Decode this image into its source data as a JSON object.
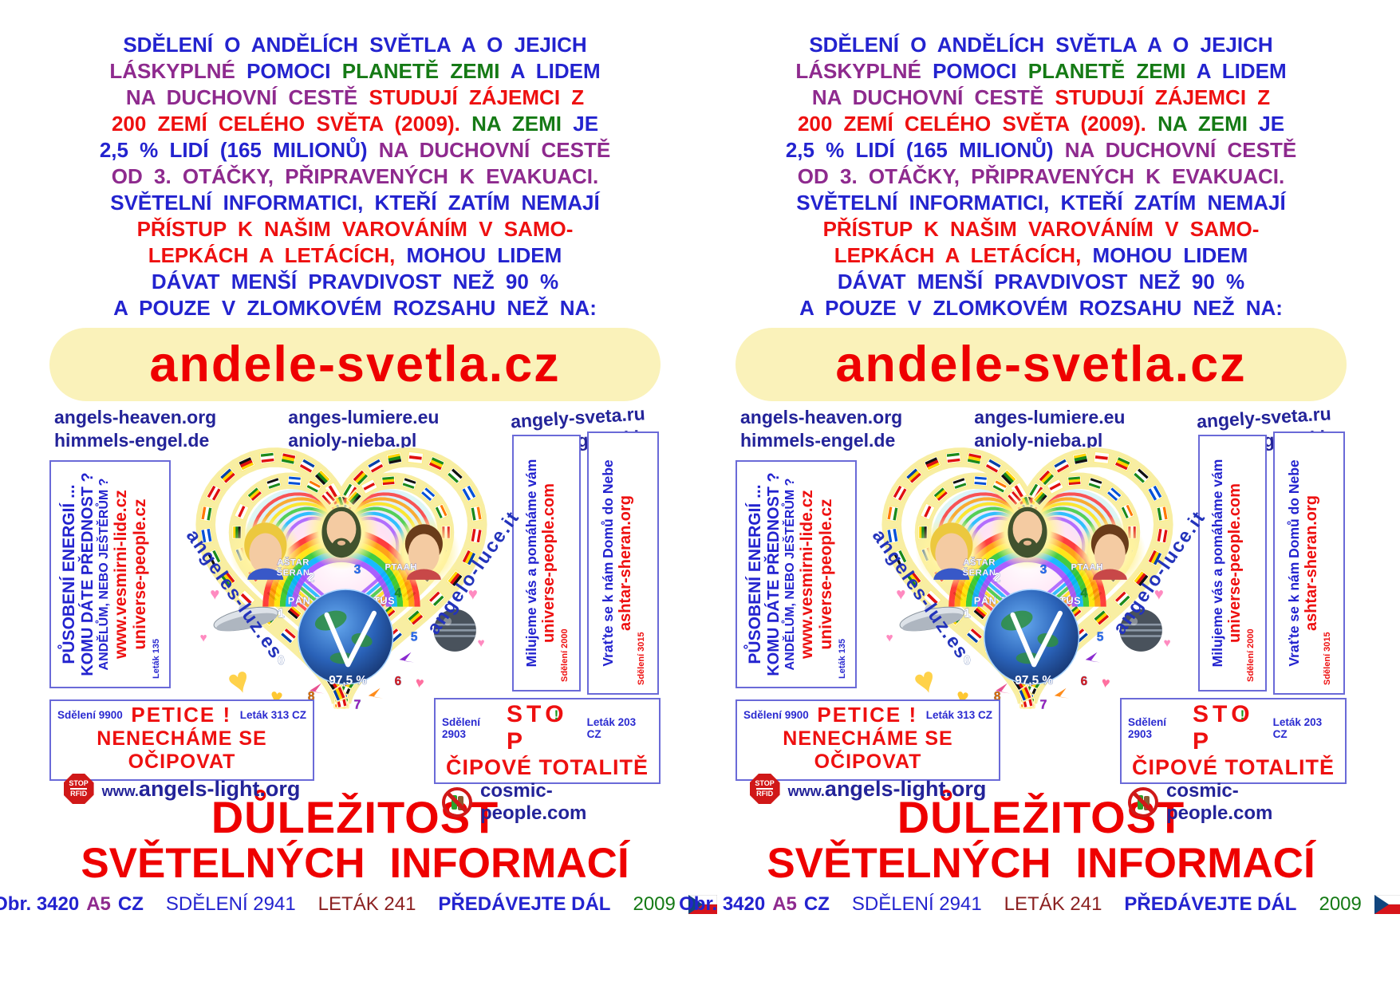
{
  "colors": {
    "blue": "#2323cf",
    "purple": "#8e2a8e",
    "red": "#ee1010",
    "green": "#157a15",
    "navy": "#232399",
    "maroon": "#8b2121",
    "title_red": "#ee0000",
    "banner_bg": "#faf2ba",
    "box_border": "#6a6ad8"
  },
  "icons": {
    "heart_glyph": "♥",
    "stop_badge_top": "STOP",
    "stop_badge_bottom": "RFID"
  },
  "leaflet": {
    "intro_lines": [
      [
        {
          "t": "SDĚLENÍ O ANDĚLÍCH SVĚTLA A O JEJICH",
          "c": "blue"
        }
      ],
      [
        {
          "t": "LÁSKYPLNÉ",
          "c": "purple"
        },
        {
          "t": "POMOCI",
          "c": "blue"
        },
        {
          "t": "PLANETĚ ZEMI",
          "c": "green"
        },
        {
          "t": "A LIDEM",
          "c": "blue"
        }
      ],
      [
        {
          "t": "NA DUCHOVNÍ CESTĚ",
          "c": "purple"
        },
        {
          "t": "STUDUJÍ ZÁJEMCI Z",
          "c": "red"
        }
      ],
      [
        {
          "t": "200 ZEMÍ CELÉHO SVĚTA (2009).",
          "c": "red"
        },
        {
          "t": "NA ZEMI",
          "c": "green"
        },
        {
          "t": "JE",
          "c": "blue"
        }
      ],
      [
        {
          "t": "2,5 % LIDÍ (165 MILIONŮ)",
          "c": "blue"
        },
        {
          "t": "NA DUCHOVNÍ CESTĚ",
          "c": "purple"
        }
      ],
      [
        {
          "t": "OD 3. OTÁČKY, PŘIPRAVENÝCH K EVAKUACI.",
          "c": "purple"
        }
      ],
      [
        {
          "t": "SVĚTELNÍ INFORMATICI, KTEŘÍ ZATÍM NEMAJÍ",
          "c": "blue"
        }
      ],
      [
        {
          "t": "PŘÍSTUP K NAŠIM VAROVÁNÍM V SAMO-",
          "c": "red"
        }
      ],
      [
        {
          "t": "LEPKÁCH A LETÁCÍCH,",
          "c": "red"
        },
        {
          "t": "MOHOU LIDEM",
          "c": "blue"
        }
      ],
      [
        {
          "t": "DÁVAT MENŠÍ PRAVDIVOST NEŽ 90 %",
          "c": "blue"
        }
      ],
      [
        {
          "t": "A POUZE V ZLOMKOVÉM ROZSAHU NEŽ NA:",
          "c": "blue"
        }
      ]
    ],
    "main_domain": "andele-svetla.cz",
    "mirror_columns": [
      [
        "angels-heaven.org",
        "himmels-engel.de"
      ],
      [
        "anges-lumiere.eu",
        "anioly-nieba.pl"
      ],
      [
        "angely-sveta.ru",
        "feny-angyalai.hu"
      ]
    ],
    "left_box": {
      "line1": "PŮSOBENÍ ENERGIÍ ...",
      "line2": "KOMU DÁTE PŘEDNOST ?",
      "line3": "ANDĚLŮM, NEBO JEŠTĚRŮM ?",
      "site1": "www.vesmirni-lide.cz",
      "site2": "universe-people.cz",
      "note": "Leták 135"
    },
    "right_box_love": {
      "message": "Milujeme vás a pomáháme vám",
      "site": "universe-people.com",
      "note": "Sdělení 2000"
    },
    "right_box_home": {
      "message": "Vraťte se k nám Domů do Nebe",
      "site": "ashtar-sheran.org",
      "note": "Sdělení 3015"
    },
    "heart": {
      "labels": {
        "ashtar_l1": "AŠTAR",
        "ashtar_l2": "ŠERAN",
        "jesus": "PÁN JEŽÍŠ KRISTUS",
        "ptaah": "PTAAH"
      },
      "percent": "97,5 %",
      "left_site": "angeles-luz.es",
      "right_site": "angelo-luce.it",
      "dial": [
        {
          "n": "0",
          "c": "#ffffff"
        },
        {
          "n": "1",
          "c": "#ffffff"
        },
        {
          "n": "2",
          "c": "#ffffff"
        },
        {
          "n": "3",
          "c": "#2a6df0"
        },
        {
          "n": "4",
          "c": "#1a9a1a"
        },
        {
          "n": "5",
          "c": "#2a6df0"
        },
        {
          "n": "6",
          "c": "#e02020"
        },
        {
          "n": "7",
          "c": "#a020c0"
        },
        {
          "n": "8",
          "c": "#e07000"
        }
      ],
      "flag_palette": [
        [
          "#e01010",
          "#ffffff",
          "#e01010"
        ],
        [
          "#0040a8",
          "#ffd400",
          "#e01010"
        ],
        [
          "#111111",
          "#e01010",
          "#ffd400"
        ],
        [
          "#1a8a1a",
          "#ffffff",
          "#e01010"
        ],
        [
          "#e01010",
          "#ffd400",
          "#1a8a1a"
        ],
        [
          "#0040a8",
          "#ffffff",
          "#e01010"
        ],
        [
          "#ffd400",
          "#1a8a1a",
          "#111111"
        ],
        [
          "#ffffff",
          "#e01010",
          "#ffffff"
        ],
        [
          "#1a8a1a",
          "#ffd400",
          "#e01010"
        ],
        [
          "#111111",
          "#ffffff",
          "#1a8a1a"
        ],
        [
          "#0050d8",
          "#ffffff",
          "#0050d8"
        ],
        [
          "#ff7800",
          "#ffffff",
          "#1a8a1a"
        ]
      ]
    },
    "petice_box": {
      "note_left": "Sdělení 9900",
      "title": "PETICE !",
      "note_right": "Leták 313 CZ",
      "line2": "NENECHÁME SE OČIPOVAT",
      "site_prefix": "www.",
      "site": "angels-light.org"
    },
    "stop_box": {
      "note_left": "Sdělení 2903",
      "title": "STOP",
      "bang": "!",
      "note_right": "Leták 203 CZ",
      "line2": "ČIPOVÉ TOTALITĚ",
      "site": "cosmic-people.com"
    },
    "headline_line1": "DŮLEŽITOST",
    "headline_line2": "SVĚTELNÝCH INFORMACÍ",
    "footer_segments": [
      {
        "t": "Obr. 3420",
        "c": "blue",
        "b": true,
        "gap": false
      },
      {
        "t": "A5",
        "c": "purple",
        "b": true,
        "gap": false
      },
      {
        "t": "CZ",
        "c": "blue",
        "b": true,
        "gap": false
      },
      {
        "t": "SDĚLENÍ 2941",
        "c": "blue",
        "b": false,
        "gap": true
      },
      {
        "t": "LETÁK 241",
        "c": "maroon",
        "b": false,
        "gap": true
      },
      {
        "t": "PŘEDÁVEJTE DÁL",
        "c": "blue",
        "b": true,
        "gap": true
      },
      {
        "t": "2009",
        "c": "green",
        "b": false,
        "gap": true
      }
    ],
    "year_flag": "czech-flag"
  }
}
